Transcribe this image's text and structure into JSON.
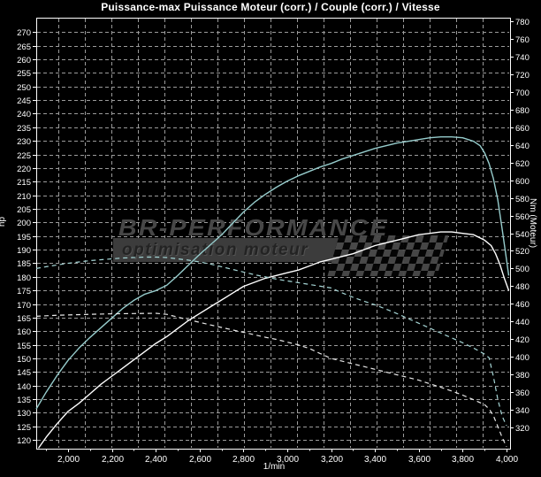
{
  "title": "Puissance-max Puissance Moteur (corr.) / Couple (corr.) / Vitesse",
  "watermark": {
    "line1": "BR-PERFORMANCE",
    "line2": "optimisation moteur"
  },
  "colors": {
    "background": "#000000",
    "axis": "#ffffff",
    "grid": "#9b9b9b",
    "text": "#ffffff",
    "watermark_text": "#474747",
    "watermark_bar": "#3c3c3c"
  },
  "chart_data": {
    "type": "line",
    "title": "Puissance-max Puissance Moteur (corr.) / Couple (corr.) / Vitesse",
    "legend": "none",
    "grid": {
      "horizontal": true,
      "vertical": true,
      "style": "dashed"
    },
    "x_axis": {
      "label": "1/min",
      "min": 1855,
      "max": 4016,
      "ticks": [
        2000,
        2200,
        2400,
        2600,
        2800,
        3000,
        3200,
        3400,
        3600,
        3800,
        4000
      ],
      "minor_tick_step": 100,
      "tick_format": "thousands-comma"
    },
    "y_axis_left": {
      "label": "hp",
      "min": 120,
      "max": 270,
      "tick_step": 5
    },
    "y_axis_right": {
      "label": "Nm (Moteur)",
      "min": 320,
      "max": 780,
      "tick_step": 20
    },
    "series": [
      {
        "name": "power-curve-solid",
        "axis": "left",
        "unit": "hp",
        "line": "solid",
        "color": "#ffffff",
        "points": [
          [
            1865,
            117
          ],
          [
            1900,
            121
          ],
          [
            1950,
            126
          ],
          [
            2000,
            130.5
          ],
          [
            2050,
            133.5
          ],
          [
            2100,
            137
          ],
          [
            2150,
            140.5
          ],
          [
            2200,
            143.5
          ],
          [
            2250,
            146.5
          ],
          [
            2300,
            149.5
          ],
          [
            2350,
            152.5
          ],
          [
            2400,
            155.5
          ],
          [
            2450,
            158
          ],
          [
            2500,
            161
          ],
          [
            2550,
            164
          ],
          [
            2600,
            166.5
          ],
          [
            2650,
            169
          ],
          [
            2700,
            171.5
          ],
          [
            2750,
            174
          ],
          [
            2800,
            176.5
          ],
          [
            2850,
            178
          ],
          [
            2900,
            179.5
          ],
          [
            2950,
            180.5
          ],
          [
            3000,
            181.5
          ],
          [
            3050,
            182.5
          ],
          [
            3100,
            184
          ],
          [
            3150,
            185.5
          ],
          [
            3200,
            186.5
          ],
          [
            3250,
            187.5
          ],
          [
            3300,
            188.5
          ],
          [
            3350,
            190
          ],
          [
            3400,
            191.5
          ],
          [
            3450,
            192.5
          ],
          [
            3500,
            193.5
          ],
          [
            3550,
            194.5
          ],
          [
            3600,
            195.5
          ],
          [
            3650,
            196
          ],
          [
            3700,
            196.5
          ],
          [
            3750,
            196.5
          ],
          [
            3800,
            196
          ],
          [
            3850,
            195.5
          ],
          [
            3900,
            193.5
          ],
          [
            3930,
            191.5
          ],
          [
            3950,
            188.5
          ],
          [
            3970,
            184.5
          ],
          [
            3990,
            179.5
          ],
          [
            4010,
            175
          ]
        ]
      },
      {
        "name": "torque-curve-solid",
        "axis": "right",
        "unit": "Nm",
        "line": "solid",
        "color": "#96cccc",
        "points": [
          [
            1855,
            341
          ],
          [
            1900,
            360
          ],
          [
            1950,
            379
          ],
          [
            2000,
            396
          ],
          [
            2050,
            410
          ],
          [
            2100,
            422
          ],
          [
            2150,
            433
          ],
          [
            2200,
            444
          ],
          [
            2250,
            455
          ],
          [
            2300,
            464
          ],
          [
            2350,
            471
          ],
          [
            2400,
            475
          ],
          [
            2450,
            481
          ],
          [
            2500,
            492
          ],
          [
            2550,
            504
          ],
          [
            2600,
            516
          ],
          [
            2650,
            527
          ],
          [
            2700,
            538
          ],
          [
            2750,
            551
          ],
          [
            2800,
            564
          ],
          [
            2850,
            575
          ],
          [
            2900,
            584
          ],
          [
            2950,
            592
          ],
          [
            3000,
            599
          ],
          [
            3050,
            605
          ],
          [
            3100,
            610
          ],
          [
            3150,
            615
          ],
          [
            3200,
            619
          ],
          [
            3250,
            624
          ],
          [
            3300,
            628
          ],
          [
            3350,
            632
          ],
          [
            3400,
            636
          ],
          [
            3450,
            639
          ],
          [
            3500,
            642
          ],
          [
            3550,
            644
          ],
          [
            3600,
            646
          ],
          [
            3650,
            648
          ],
          [
            3700,
            649
          ],
          [
            3750,
            649
          ],
          [
            3800,
            648
          ],
          [
            3850,
            644
          ],
          [
            3880,
            639
          ],
          [
            3900,
            631
          ],
          [
            3920,
            619
          ],
          [
            3940,
            602
          ],
          [
            3960,
            578
          ],
          [
            3980,
            545
          ],
          [
            4000,
            510
          ],
          [
            4010,
            492
          ]
        ]
      },
      {
        "name": "power-curve-dashed",
        "axis": "left",
        "unit": "hp",
        "line": "dashed",
        "color": "#e8e8e8",
        "points": [
          [
            1855,
            165.5
          ],
          [
            1900,
            165.7
          ],
          [
            1950,
            165.9
          ],
          [
            2000,
            166
          ],
          [
            2100,
            166.2
          ],
          [
            2200,
            166.4
          ],
          [
            2300,
            166.5
          ],
          [
            2400,
            166.6
          ],
          [
            2450,
            166.2
          ],
          [
            2500,
            165.2
          ],
          [
            2550,
            164.2
          ],
          [
            2600,
            163.3
          ],
          [
            2650,
            162.3
          ],
          [
            2700,
            161.4
          ],
          [
            2750,
            160.5
          ],
          [
            2800,
            159.6
          ],
          [
            2850,
            158.7
          ],
          [
            2900,
            157.8
          ],
          [
            2950,
            157
          ],
          [
            3000,
            156
          ],
          [
            3050,
            155
          ],
          [
            3100,
            153.7
          ],
          [
            3150,
            151.8
          ],
          [
            3200,
            150
          ],
          [
            3250,
            149
          ],
          [
            3300,
            148
          ],
          [
            3350,
            147
          ],
          [
            3400,
            146
          ],
          [
            3450,
            145
          ],
          [
            3500,
            144
          ],
          [
            3550,
            143
          ],
          [
            3600,
            142
          ],
          [
            3650,
            140.7
          ],
          [
            3700,
            139.4
          ],
          [
            3750,
            138
          ],
          [
            3800,
            136.5
          ],
          [
            3850,
            134.8
          ],
          [
            3900,
            133
          ],
          [
            3920,
            131.5
          ],
          [
            3940,
            129
          ],
          [
            3960,
            125
          ],
          [
            3980,
            121
          ],
          [
            4000,
            117.5
          ]
        ]
      },
      {
        "name": "torque-curve-dashed",
        "axis": "right",
        "unit": "Nm",
        "line": "dashed",
        "color": "#a5d5d5",
        "points": [
          [
            1855,
            500
          ],
          [
            1900,
            502
          ],
          [
            1950,
            504
          ],
          [
            2000,
            506
          ],
          [
            2050,
            507.5
          ],
          [
            2100,
            509
          ],
          [
            2150,
            510
          ],
          [
            2200,
            511
          ],
          [
            2250,
            512
          ],
          [
            2300,
            512.5
          ],
          [
            2350,
            513
          ],
          [
            2400,
            513
          ],
          [
            2450,
            512.5
          ],
          [
            2500,
            511
          ],
          [
            2550,
            509.5
          ],
          [
            2600,
            507.5
          ],
          [
            2650,
            505
          ],
          [
            2700,
            502
          ],
          [
            2750,
            499
          ],
          [
            2800,
            496
          ],
          [
            2850,
            493
          ],
          [
            2900,
            490.5
          ],
          [
            2950,
            488
          ],
          [
            3000,
            486
          ],
          [
            3050,
            484
          ],
          [
            3100,
            482
          ],
          [
            3150,
            480
          ],
          [
            3200,
            478
          ],
          [
            3250,
            472.5
          ],
          [
            3300,
            467.5
          ],
          [
            3350,
            463
          ],
          [
            3400,
            459
          ],
          [
            3450,
            454
          ],
          [
            3500,
            449
          ],
          [
            3550,
            443.5
          ],
          [
            3600,
            438
          ],
          [
            3650,
            432.5
          ],
          [
            3700,
            427
          ],
          [
            3750,
            421.5
          ],
          [
            3800,
            416
          ],
          [
            3850,
            410
          ],
          [
            3900,
            403
          ],
          [
            3920,
            399
          ],
          [
            3940,
            378
          ],
          [
            3960,
            352
          ],
          [
            3980,
            333
          ],
          [
            4000,
            322
          ]
        ]
      }
    ]
  }
}
